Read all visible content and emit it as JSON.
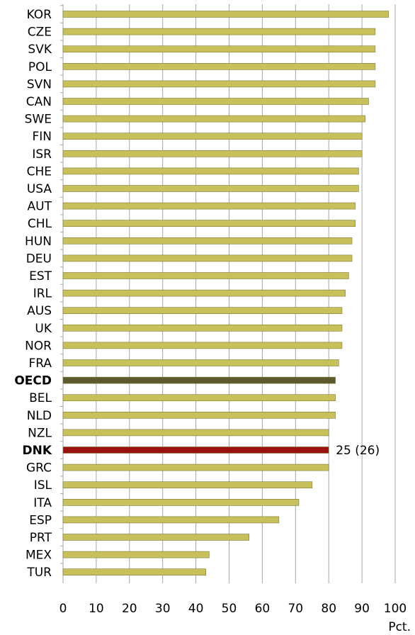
{
  "chart_data": {
    "type": "bar",
    "orientation": "horizontal",
    "categories": [
      "KOR",
      "CZE",
      "SVK",
      "POL",
      "SVN",
      "CAN",
      "SWE",
      "FIN",
      "ISR",
      "CHE",
      "USA",
      "AUT",
      "CHL",
      "HUN",
      "DEU",
      "EST",
      "IRL",
      "AUS",
      "UK",
      "NOR",
      "FRA",
      "OECD",
      "BEL",
      "NLD",
      "NZL",
      "DNK",
      "GRC",
      "ISL",
      "ITA",
      "ESP",
      "PRT",
      "MEX",
      "TUR"
    ],
    "values": [
      98,
      94,
      94,
      94,
      94,
      92,
      91,
      90,
      90,
      89,
      89,
      88,
      88,
      87,
      87,
      86,
      85,
      84,
      84,
      84,
      83,
      82,
      82,
      82,
      80,
      80,
      80,
      75,
      71,
      65,
      56,
      44,
      43
    ],
    "highlight": {
      "OECD": "#5a5a2c",
      "DNK": "#9b1010"
    },
    "bold_categories": [
      "OECD",
      "DNK"
    ],
    "bar_color": "#c8c05a",
    "annotations": [
      {
        "category": "DNK",
        "text": "25 (26)"
      }
    ],
    "xlim": [
      0,
      100
    ],
    "xticks": [
      "0",
      "10",
      "20",
      "30",
      "40",
      "50",
      "60",
      "70",
      "80",
      "90",
      "100"
    ],
    "xlabel": "Pct.",
    "grid": true
  }
}
